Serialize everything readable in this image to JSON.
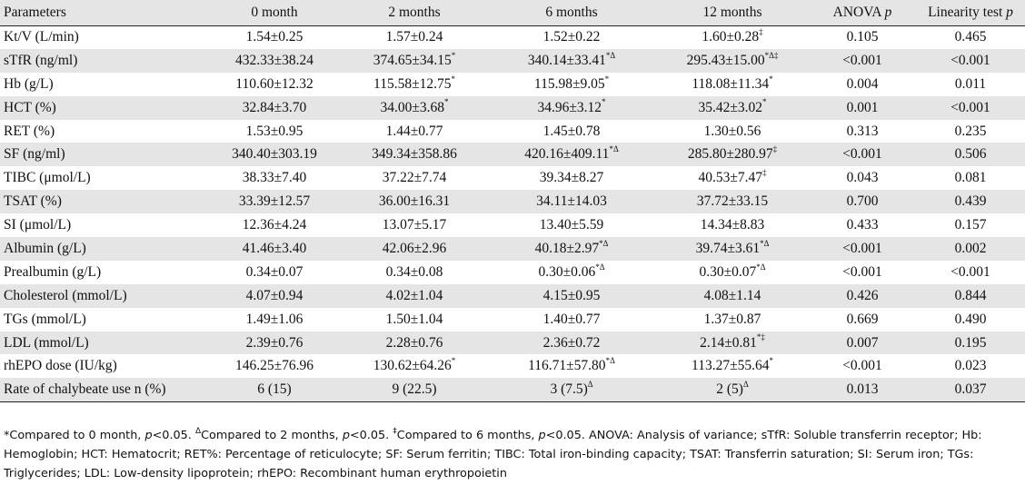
{
  "table": {
    "headers": {
      "parameters": "Parameters",
      "m0": "0 month",
      "m2": "2 months",
      "m6": "6 months",
      "m12": "12 months",
      "anova_label": "ANOVA",
      "anova_p": "p",
      "linearity_label": "Linearity test",
      "linearity_p": "p"
    },
    "rows": [
      {
        "param": "Kt/V (L/min)",
        "m0": "1.54±0.25",
        "m0s": "",
        "m2": "1.57±0.24",
        "m2s": "",
        "m6": "1.52±0.22",
        "m6s": "",
        "m12": "1.60±0.28",
        "m12s": "‡",
        "anova": "0.105",
        "lin": "0.465"
      },
      {
        "param": "sTfR (ng/ml)",
        "m0": "432.33±38.24",
        "m0s": "",
        "m2": "374.65±34.15",
        "m2s": "*",
        "m6": "340.14±33.41",
        "m6s": "*Δ",
        "m12": "295.43±15.00",
        "m12s": "*Δ‡",
        "anova": "<0.001",
        "lin": "<0.001"
      },
      {
        "param": "Hb (g/L)",
        "m0": "110.60±12.32",
        "m0s": "",
        "m2": "115.58±12.75",
        "m2s": "*",
        "m6": "115.98±9.05",
        "m6s": "*",
        "m12": "118.08±11.34",
        "m12s": "*",
        "anova": "0.004",
        "lin": "0.011"
      },
      {
        "param": "HCT (%)",
        "m0": "32.84±3.70",
        "m0s": "",
        "m2": "34.00±3.68",
        "m2s": "*",
        "m6": "34.96±3.12",
        "m6s": "*",
        "m12": "35.42±3.02",
        "m12s": "*",
        "anova": "0.001",
        "lin": "<0.001"
      },
      {
        "param": "RET (%)",
        "m0": "1.53±0.95",
        "m0s": "",
        "m2": "1.44±0.77",
        "m2s": "",
        "m6": "1.45±0.78",
        "m6s": "",
        "m12": "1.30±0.56",
        "m12s": "",
        "anova": "0.313",
        "lin": "0.235"
      },
      {
        "param": "SF (ng/ml)",
        "m0": "340.40±303.19",
        "m0s": "",
        "m2": "349.34±358.86",
        "m2s": "",
        "m6": "420.16±409.11",
        "m6s": "*Δ",
        "m12": "285.80±280.97",
        "m12s": "‡",
        "anova": "<0.001",
        "lin": "0.506"
      },
      {
        "param": "TIBC (μmol/L)",
        "m0": "38.33±7.40",
        "m0s": "",
        "m2": "37.22±7.74",
        "m2s": "",
        "m6": "39.34±8.27",
        "m6s": "",
        "m12": "40.53±7.47",
        "m12s": "‡",
        "anova": "0.043",
        "lin": "0.081"
      },
      {
        "param": "TSAT (%)",
        "m0": "33.39±12.57",
        "m0s": "",
        "m2": "36.00±16.31",
        "m2s": "",
        "m6": "34.11±14.03",
        "m6s": "",
        "m12": "37.72±33.15",
        "m12s": "",
        "anova": "0.700",
        "lin": "0.439"
      },
      {
        "param": "SI (μmol/L)",
        "m0": "12.36±4.24",
        "m0s": "",
        "m2": "13.07±5.17",
        "m2s": "",
        "m6": "13.40±5.59",
        "m6s": "",
        "m12": "14.34±8.83",
        "m12s": "",
        "anova": "0.433",
        "lin": "0.157"
      },
      {
        "param": "Albumin (g/L)",
        "m0": "41.46±3.40",
        "m0s": "",
        "m2": "42.06±2.96",
        "m2s": "",
        "m6": "40.18±2.97",
        "m6s": "*Δ",
        "m12": "39.74±3.61",
        "m12s": "*Δ",
        "anova": "<0.001",
        "lin": "0.002"
      },
      {
        "param": "Prealbumin (g/L)",
        "m0": "0.34±0.07",
        "m0s": "",
        "m2": "0.34±0.08",
        "m2s": "",
        "m6": "0.30±0.06",
        "m6s": "*Δ",
        "m12": "0.30±0.07",
        "m12s": "*Δ",
        "anova": "<0.001",
        "lin": "<0.001"
      },
      {
        "param": "Cholesterol (mmol/L)",
        "m0": "4.07±0.94",
        "m0s": "",
        "m2": "4.02±1.04",
        "m2s": "",
        "m6": "4.15±0.95",
        "m6s": "",
        "m12": "4.08±1.14",
        "m12s": "",
        "anova": "0.426",
        "lin": "0.844"
      },
      {
        "param": "TGs (mmol/L)",
        "m0": "1.49±1.06",
        "m0s": "",
        "m2": "1.50±1.04",
        "m2s": "",
        "m6": "1.40±0.77",
        "m6s": "",
        "m12": "1.37±0.87",
        "m12s": "",
        "anova": "0.669",
        "lin": "0.490"
      },
      {
        "param": "LDL (mmol/L)",
        "m0": "2.39±0.76",
        "m0s": "",
        "m2": "2.28±0.76",
        "m2s": "",
        "m6": "2.36±0.72",
        "m6s": "",
        "m12": "2.14±0.81",
        "m12s": "*‡",
        "anova": "0.007",
        "lin": "0.195"
      },
      {
        "param": "rhEPO dose (IU/kg)",
        "m0": "146.25±76.96",
        "m0s": "",
        "m2": "130.62±64.26",
        "m2s": "*",
        "m6": "116.71±57.80",
        "m6s": "*Δ",
        "m12": "113.27±55.64",
        "m12s": "*",
        "anova": "<0.001",
        "lin": "0.023"
      },
      {
        "param": "Rate of chalybeate use n (%)",
        "m0": "6 (15)",
        "m0s": "",
        "m2": "9 (22.5)",
        "m2s": "",
        "m6": "3 (7.5)",
        "m6s": "Δ",
        "m12": "2 (5)",
        "m12s": "Δ",
        "anova": "0.013",
        "lin": "0.037"
      }
    ]
  },
  "footnote": {
    "a_mark": "*",
    "a_text": "Compared to 0 month, ",
    "p1": "p",
    "a_end": "<0.05. ",
    "b_mark": "Δ",
    "b_text": "Compared to 2 months, ",
    "p2": "p",
    "b_end": "<0.05. ",
    "c_mark": "‡",
    "c_text": "Compared to 6 months, ",
    "p3": "p",
    "c_end": "<0.05. ANOVA: Analysis of variance; sTfR: Soluble transferrin receptor; Hb: Hemoglobin; HCT: Hematocrit; RET%: Percentage of reticulocyte; SF: Serum ferritin; TIBC: Total iron-binding capacity; TSAT: Transferrin saturation; SI: Serum iron; TGs: Triglycerides; LDL: Low-density lipoprotein; rhEPO: Recombinant human erythropoietin"
  }
}
